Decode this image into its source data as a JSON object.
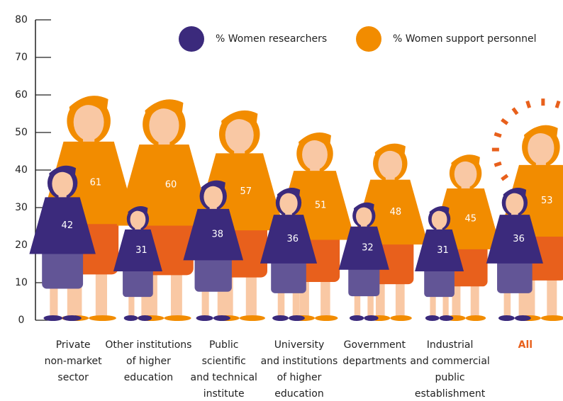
{
  "chart_data": {
    "type": "pictogram",
    "categories": [
      [
        "Private",
        "non-market",
        "sector"
      ],
      [
        "Other institutions",
        "of higher",
        "education"
      ],
      [
        "Public",
        "scientific",
        "and technical",
        "institute"
      ],
      [
        "University",
        "and institutions",
        "of higher",
        "education"
      ],
      [
        "Government",
        "departments"
      ],
      [
        "Industrial",
        "and commercial",
        "public",
        "establishment"
      ],
      [
        "All"
      ]
    ],
    "series": [
      {
        "name": "% Women researchers",
        "color": "#3b2a7c",
        "values": [
          42,
          31,
          38,
          36,
          32,
          31,
          36
        ]
      },
      {
        "name": "% Women support personnel",
        "color": "#f28c00",
        "values": [
          61,
          60,
          57,
          51,
          48,
          45,
          53
        ]
      }
    ],
    "ylim": [
      0,
      80
    ],
    "yticks": [
      0,
      10,
      20,
      30,
      40,
      50,
      60,
      70,
      80
    ],
    "highlight": {
      "category": 6,
      "color": "#e8601c"
    }
  }
}
